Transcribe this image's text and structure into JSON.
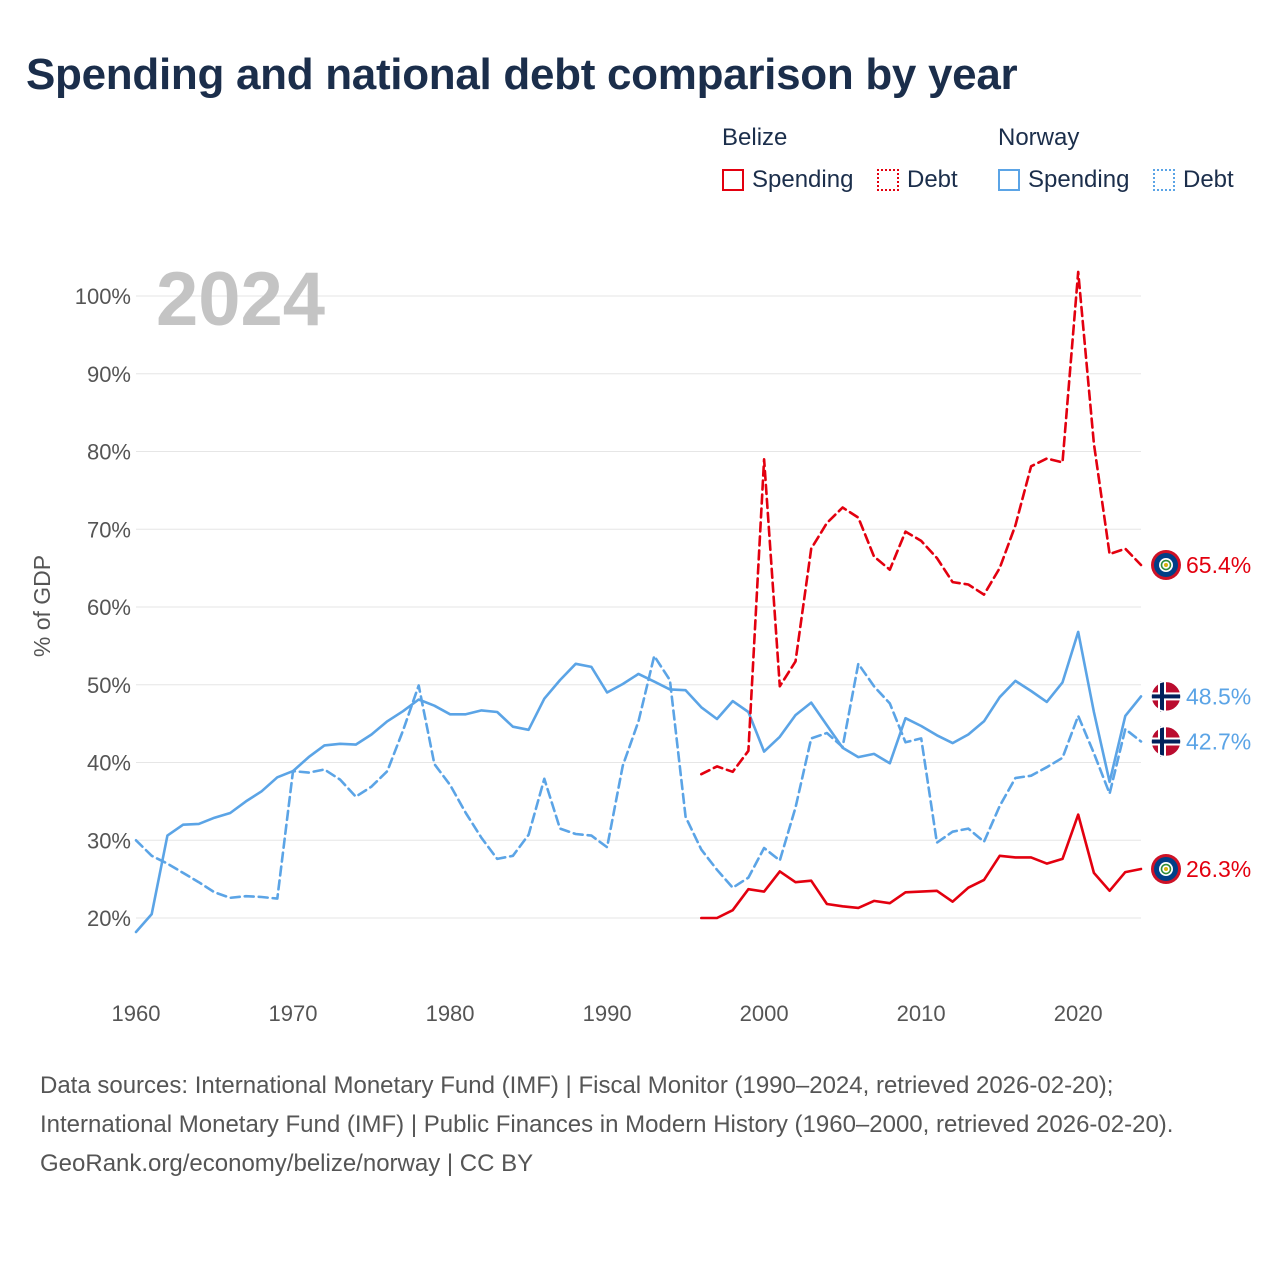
{
  "chart_data": {
    "type": "line",
    "title": "Spending and national debt comparison by year",
    "year_watermark": "2024",
    "ylabel": "% of GDP",
    "xlabel": "",
    "xlim": [
      1960,
      2024
    ],
    "ylim": [
      14,
      106
    ],
    "x_ticks": [
      1960,
      1970,
      1980,
      1990,
      2000,
      2010,
      2020
    ],
    "y_ticks": [
      20,
      30,
      40,
      50,
      60,
      70,
      80,
      90,
      100
    ],
    "y_tick_labels": [
      "20%",
      "30%",
      "40%",
      "50%",
      "60%",
      "70%",
      "80%",
      "90%",
      "100%"
    ],
    "legend": {
      "groups": [
        {
          "name": "Belize",
          "items": [
            "Spending",
            "Debt"
          ]
        },
        {
          "name": "Norway",
          "items": [
            "Spending",
            "Debt"
          ]
        }
      ]
    },
    "colors": {
      "belize": "#e3000f",
      "norway": "#5ba4e6"
    },
    "series": [
      {
        "name": "Norway Debt",
        "country": "Norway",
        "metric": "Debt",
        "style": "dashed",
        "x": [
          1960,
          1961,
          1962,
          1963,
          1964,
          1965,
          1966,
          1967,
          1968,
          1969,
          1970,
          1971,
          1972,
          1973,
          1974,
          1975,
          1976,
          1977,
          1978,
          1979,
          1980,
          1981,
          1982,
          1983,
          1984,
          1985,
          1986,
          1987,
          1988,
          1989,
          1990,
          1991,
          1992,
          1993,
          1994,
          1995,
          1996,
          1997,
          1998,
          1999,
          2000,
          2001,
          2002,
          2003,
          2004,
          2005,
          2006,
          2007,
          2008,
          2009,
          2010,
          2011,
          2012,
          2013,
          2014,
          2015,
          2016,
          2017,
          2018,
          2019,
          2020,
          2021,
          2022,
          2023,
          2024
        ],
        "values": [
          30.0,
          28.0,
          27.0,
          25.8,
          24.6,
          23.3,
          22.6,
          22.8,
          22.7,
          22.5,
          38.9,
          38.7,
          39.1,
          37.8,
          35.6,
          36.9,
          38.9,
          44.1,
          49.9,
          39.8,
          37.1,
          33.5,
          30.3,
          27.6,
          28.0,
          30.7,
          37.9,
          31.5,
          30.8,
          30.6,
          29.1,
          39.6,
          45.3,
          53.7,
          50.6,
          33.0,
          28.8,
          26.2,
          23.9,
          25.2,
          29.0,
          27.4,
          34.2,
          43.1,
          43.8,
          42.0,
          52.7,
          49.8,
          47.6,
          42.6,
          43.1,
          29.7,
          31.1,
          31.5,
          29.8,
          34.4,
          38.0,
          38.3,
          39.4,
          40.6,
          46.0,
          41.2,
          36.0,
          44.3,
          42.7
        ],
        "end_label": "42.7%"
      },
      {
        "name": "Norway Spending",
        "country": "Norway",
        "metric": "Spending",
        "style": "solid",
        "x": [
          1960,
          1961,
          1962,
          1963,
          1964,
          1965,
          1966,
          1967,
          1968,
          1969,
          1970,
          1971,
          1972,
          1973,
          1974,
          1975,
          1976,
          1977,
          1978,
          1979,
          1980,
          1981,
          1982,
          1983,
          1984,
          1985,
          1986,
          1987,
          1988,
          1989,
          1990,
          1991,
          1992,
          1993,
          1994,
          1995,
          1996,
          1997,
          1998,
          1999,
          2000,
          2001,
          2002,
          2003,
          2004,
          2005,
          2006,
          2007,
          2008,
          2009,
          2010,
          2011,
          2012,
          2013,
          2014,
          2015,
          2016,
          2017,
          2018,
          2019,
          2020,
          2021,
          2022,
          2023,
          2024
        ],
        "values": [
          18.2,
          20.5,
          30.6,
          32.0,
          32.1,
          32.9,
          33.5,
          35.0,
          36.3,
          38.1,
          38.9,
          40.7,
          42.2,
          42.4,
          42.3,
          43.6,
          45.3,
          46.6,
          48.1,
          47.3,
          46.2,
          46.2,
          46.7,
          46.5,
          44.6,
          44.2,
          48.2,
          50.6,
          52.7,
          52.3,
          49.0,
          50.1,
          51.4,
          50.4,
          49.4,
          49.3,
          47.1,
          45.6,
          47.9,
          46.5,
          41.4,
          43.3,
          46.1,
          47.7,
          44.8,
          41.9,
          40.7,
          41.1,
          39.9,
          45.7,
          44.7,
          43.5,
          42.5,
          43.6,
          45.3,
          48.4,
          50.5,
          49.2,
          47.8,
          50.3,
          56.8,
          46.5,
          37.5,
          46.0,
          48.5
        ],
        "end_label": "48.5%"
      },
      {
        "name": "Belize Debt",
        "country": "Belize",
        "metric": "Debt",
        "style": "dashed",
        "x": [
          1996,
          1997,
          1998,
          1999,
          2000,
          2001,
          2002,
          2003,
          2004,
          2005,
          2006,
          2007,
          2008,
          2009,
          2010,
          2011,
          2012,
          2013,
          2014,
          2015,
          2016,
          2017,
          2018,
          2019,
          2020,
          2021,
          2022,
          2023,
          2024
        ],
        "values": [
          38.5,
          39.5,
          38.8,
          41.5,
          79.0,
          49.8,
          53.0,
          67.5,
          70.8,
          72.8,
          71.5,
          66.5,
          64.8,
          69.7,
          68.5,
          66.3,
          63.2,
          62.9,
          61.6,
          65.0,
          70.5,
          78.1,
          79.1,
          78.6,
          103.1,
          81.0,
          66.8,
          67.5,
          65.4
        ],
        "end_label": "65.4%"
      },
      {
        "name": "Belize Spending",
        "country": "Belize",
        "metric": "Spending",
        "style": "solid",
        "x": [
          1996,
          1997,
          1998,
          1999,
          2000,
          2001,
          2002,
          2003,
          2004,
          2005,
          2006,
          2007,
          2008,
          2009,
          2010,
          2011,
          2012,
          2013,
          2014,
          2015,
          2016,
          2017,
          2018,
          2019,
          2020,
          2021,
          2022,
          2023,
          2024
        ],
        "values": [
          20.0,
          20.0,
          21.0,
          23.7,
          23.4,
          26.0,
          24.6,
          24.8,
          21.8,
          21.5,
          21.3,
          22.2,
          21.9,
          23.3,
          23.4,
          23.5,
          22.1,
          23.9,
          24.9,
          28.0,
          27.8,
          27.8,
          27.0,
          27.6,
          33.3,
          25.8,
          23.5,
          25.9,
          26.3
        ],
        "end_label": "26.3%"
      }
    ]
  },
  "footer": {
    "sources": "Data sources: International Monetary Fund (IMF) | Fiscal Monitor (1990–2024, retrieved 2026-02-20); International Monetary Fund (IMF) | Public Finances in Modern History (1960–2000, retrieved 2026-02-20).",
    "credit": "GeoRank.org/economy/belize/norway | CC BY"
  }
}
